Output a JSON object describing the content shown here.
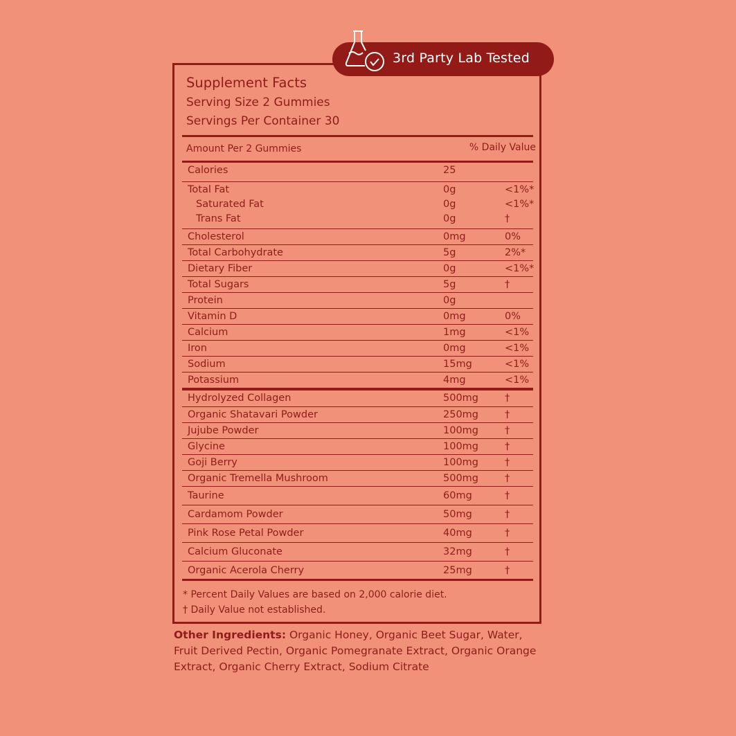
{
  "badge": {
    "label": "3rd Party Lab Tested",
    "icon": "flask-check-icon"
  },
  "facts": {
    "title": "Supplement Facts",
    "serving_size": "Serving Size 2 Gummies",
    "servings_per_container": "Servings Per Container 30",
    "amount_header": "Amount Per 2 Gummies",
    "dv_header": "% Daily Value",
    "calories": {
      "name": "Calories",
      "amount": "25"
    },
    "fat": [
      {
        "name": "Total Fat",
        "amount": "0g",
        "dv": "<1%*"
      },
      {
        "name": "Saturated Fat",
        "amount": "0g",
        "dv": "<1%*"
      },
      {
        "name": "Trans Fat",
        "amount": "0g",
        "dv": "†"
      }
    ],
    "nutrients": [
      {
        "name": "Cholesterol",
        "amount": "0mg",
        "dv": "0%"
      },
      {
        "name": "Total Carbohydrate",
        "amount": "5g",
        "dv": "2%*"
      },
      {
        "name": "Dietary Fiber",
        "amount": "0g",
        "dv": "<1%*"
      },
      {
        "name": "Total Sugars",
        "amount": "5g",
        "dv": "†"
      },
      {
        "name": "Protein",
        "amount": "0g",
        "dv": ""
      },
      {
        "name": "Vitamin D",
        "amount": "0mg",
        "dv": "0%"
      },
      {
        "name": "Calcium",
        "amount": "1mg",
        "dv": "<1%"
      },
      {
        "name": "Iron",
        "amount": "0mg",
        "dv": "<1%"
      },
      {
        "name": "Sodium",
        "amount": "15mg",
        "dv": "<1%"
      },
      {
        "name": "Potassium",
        "amount": "4mg",
        "dv": "<1%"
      }
    ],
    "ingredients": [
      {
        "name": "Hydrolyzed Collagen",
        "amount": "500mg",
        "dv": "†"
      },
      {
        "name": "Organic Shatavari Powder",
        "amount": "250mg",
        "dv": "†"
      },
      {
        "name": "Jujube Powder",
        "amount": "100mg",
        "dv": "†"
      },
      {
        "name": "Glycine",
        "amount": "100mg",
        "dv": "†"
      },
      {
        "name": "Goji Berry",
        "amount": "100mg",
        "dv": "†"
      },
      {
        "name": "Organic Tremella Mushroom",
        "amount": "500mg",
        "dv": "†"
      },
      {
        "name": "Taurine",
        "amount": "60mg",
        "dv": "†"
      },
      {
        "name": "Cardamom Powder",
        "amount": "50mg",
        "dv": "†"
      },
      {
        "name": "Pink Rose Petal Powder",
        "amount": "40mg",
        "dv": "†"
      },
      {
        "name": "Calcium Gluconate",
        "amount": "32mg",
        "dv": "†"
      },
      {
        "name": "Organic Acerola Cherry",
        "amount": "25mg",
        "dv": "†"
      }
    ],
    "footnote_1": "* Percent Daily Values are based on 2,000 calorie diet.",
    "footnote_2": "† Daily Value not established."
  },
  "other_ingredients": {
    "label": "Other Ingredients:",
    "text": " Organic Honey, Organic Beet Sugar, Water, Fruit Derived Pectin, Organic Pomegranate Extract, Organic Orange Extract, Organic Cherry Extract, Sodium Citrate"
  },
  "colors": {
    "background": "#f19179",
    "accent": "#921a17",
    "text": "#8e1d19"
  }
}
